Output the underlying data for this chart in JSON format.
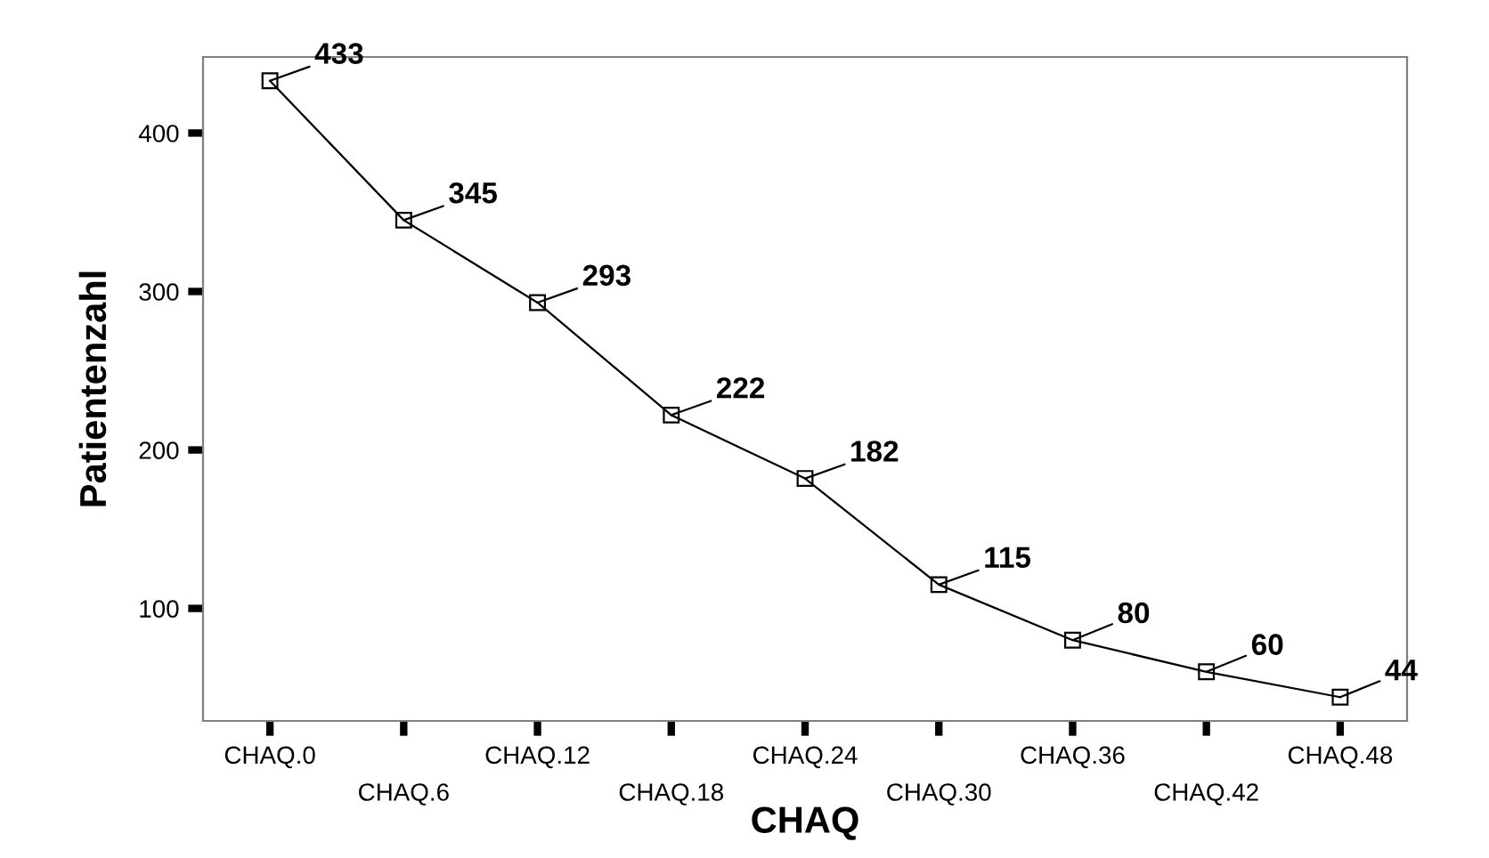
{
  "chart_data": {
    "type": "line",
    "xlabel": "CHAQ",
    "ylabel": "Patientenzahl",
    "categories": [
      "CHAQ.0",
      "CHAQ.6",
      "CHAQ.12",
      "CHAQ.18",
      "CHAQ.24",
      "CHAQ.30",
      "CHAQ.36",
      "CHAQ.42",
      "CHAQ.48"
    ],
    "series": [
      {
        "color": "#000000",
        "values": [
          433,
          345,
          293,
          222,
          182,
          115,
          80,
          60,
          44
        ]
      }
    ],
    "ylim": [
      29,
      448
    ],
    "yticks": [
      100,
      200,
      300,
      400
    ],
    "data_labels": true,
    "marker": "square",
    "line_style": "solid",
    "grid": false,
    "legend": false
  }
}
